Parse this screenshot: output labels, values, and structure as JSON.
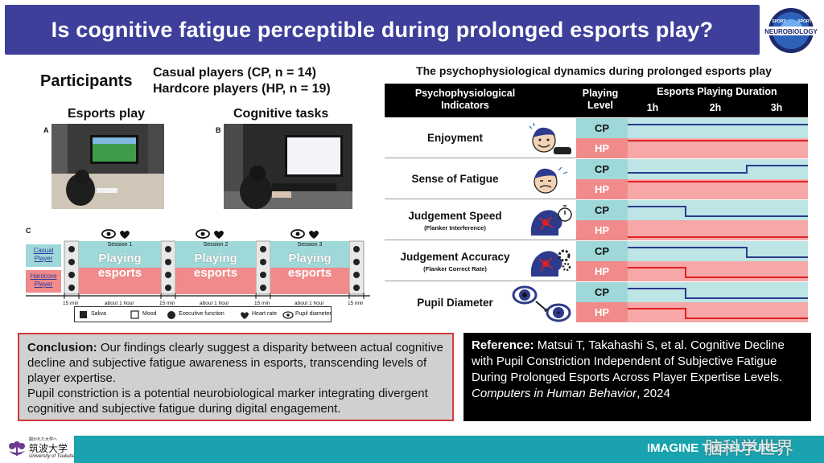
{
  "title": "Is cognitive fatigue perceptible during prolonged esports play?",
  "logo": {
    "text_top": "SPORT",
    "text_main": "NEUROBIOLOGY",
    "text_side": "SPORT"
  },
  "participants": {
    "heading": "Participants",
    "casual": "Casual players (CP, n = 14)",
    "hardcore": "Hardcore players (HP, n = 19)"
  },
  "photos": {
    "esports_heading": "Esports play",
    "cognitive_heading": "Cognitive tasks",
    "label_a": "A",
    "label_b": "B"
  },
  "protocol": {
    "label_c": "C",
    "casual_label": "Casual Player",
    "hardcore_label": "Hardcore Player",
    "sessions": [
      {
        "name": "Session 1",
        "play": "Playing",
        "play2": "esports"
      },
      {
        "name": "Session 2",
        "play": "Playing",
        "play2": "esports"
      },
      {
        "name": "Session 3",
        "play": "Playing",
        "play2": "esports"
      }
    ],
    "timeline": [
      "15 min",
      "about 1 hour",
      "15 min",
      "about 1 hour",
      "15 min",
      "about 1 hour",
      "15 min"
    ],
    "legend": [
      "Saliva",
      "Mood",
      "Executive function",
      "Heart rate",
      "Pupil diameter"
    ]
  },
  "table": {
    "title": "The psychophysiological dynamics during prolonged esports play",
    "col_indicators": "Psychophysiological Indicators",
    "col_level": "Playing Level",
    "col_duration": "Esports Playing Duration",
    "hours": [
      "1h",
      "2h",
      "3h"
    ],
    "rows": [
      {
        "name": "Enjoyment",
        "sub": "",
        "cp": "CP",
        "hp": "HP"
      },
      {
        "name": "Sense of Fatigue",
        "sub": "",
        "cp": "CP",
        "hp": "HP"
      },
      {
        "name": "Judgement Speed",
        "sub": "(Flanker Interference)",
        "cp": "CP",
        "hp": "HP"
      },
      {
        "name": "Judgement Accuracy",
        "sub": "(Flanker Correct Rate)",
        "cp": "CP",
        "hp": "HP"
      },
      {
        "name": "Pupil Diameter",
        "sub": "",
        "cp": "CP",
        "hp": "HP"
      }
    ]
  },
  "conclusion": {
    "label": "Conclusion:",
    "text1": " Our findings clearly suggest a disparity between actual cognitive decline and subjective fatigue awareness in esports, transcending levels of player expertise.",
    "text2": "Pupil constriction is a potential neurobiological marker integrating divergent cognitive and subjective fatigue during digital engagement."
  },
  "reference": {
    "label": "Reference:",
    "text": " Matsui T, Takahashi S, et al. Cognitive Decline with Pupil Constriction Independent of Subjective Fatigue During Prolonged Esports Across Player Expertise Levels. ",
    "journal": "Computers in Human Behavior",
    "year": ", 2024"
  },
  "footer": {
    "university_tiny": "開かれた大学へ",
    "university": "筑波大学",
    "university_en": "University of Tsukuba",
    "slogan": "IMAGINE THE FUTURE.",
    "watermark": "脑科学世界"
  },
  "colors": {
    "banner": "#3d3f9a",
    "cp": "#9fd8d8",
    "hp": "#f18a8a",
    "line": "#2b3a8c",
    "hp_line": "#e02020",
    "footer": "#1aa3ae",
    "conclusion_border": "#d43a3a"
  }
}
